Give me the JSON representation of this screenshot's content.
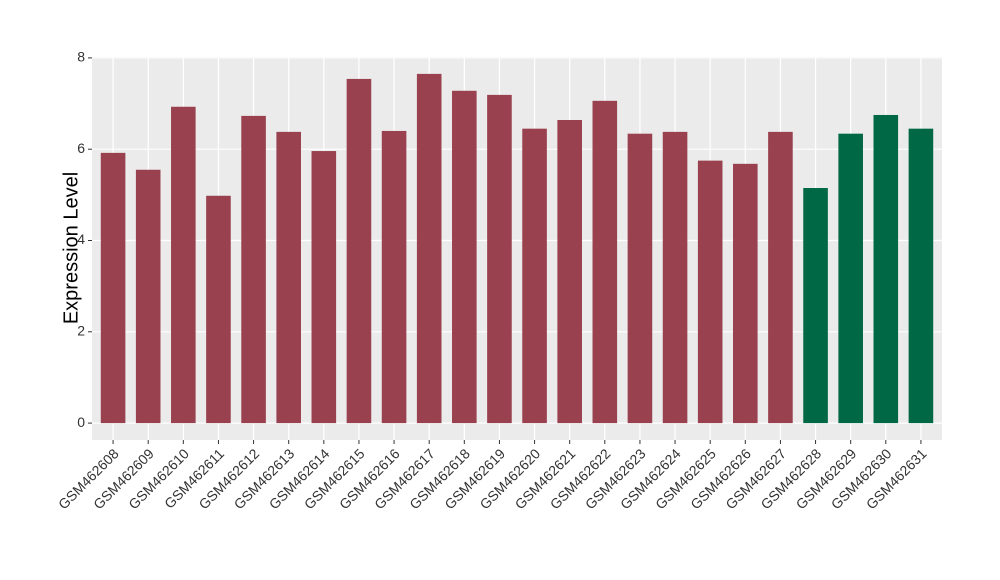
{
  "chart_data": {
    "type": "bar",
    "ylabel": "Expression Level",
    "categories": [
      "GSM462608",
      "GSM462609",
      "GSM462610",
      "GSM462611",
      "GSM462612",
      "GSM462613",
      "GSM462614",
      "GSM462615",
      "GSM462616",
      "GSM462617",
      "GSM462618",
      "GSM462619",
      "GSM462620",
      "GSM462621",
      "GSM462622",
      "GSM462623",
      "GSM462624",
      "GSM462625",
      "GSM462626",
      "GSM462627",
      "GSM462628",
      "GSM462629",
      "GSM462630",
      "GSM462631"
    ],
    "values": [
      5.92,
      5.55,
      6.93,
      4.98,
      6.73,
      6.38,
      5.96,
      7.54,
      6.4,
      7.65,
      7.28,
      7.19,
      6.45,
      6.64,
      7.06,
      6.34,
      6.38,
      5.75,
      5.68,
      6.38,
      5.15,
      6.34,
      6.75,
      6.45
    ],
    "colors": [
      "#99414f",
      "#99414f",
      "#99414f",
      "#99414f",
      "#99414f",
      "#99414f",
      "#99414f",
      "#99414f",
      "#99414f",
      "#99414f",
      "#99414f",
      "#99414f",
      "#99414f",
      "#99414f",
      "#99414f",
      "#99414f",
      "#99414f",
      "#99414f",
      "#99414f",
      "#99414f",
      "#006845",
      "#006845",
      "#006845",
      "#006845"
    ],
    "ylim": [
      -0.37,
      8.02
    ],
    "yticks": [
      0,
      2,
      4,
      6,
      8
    ],
    "grid": true
  }
}
